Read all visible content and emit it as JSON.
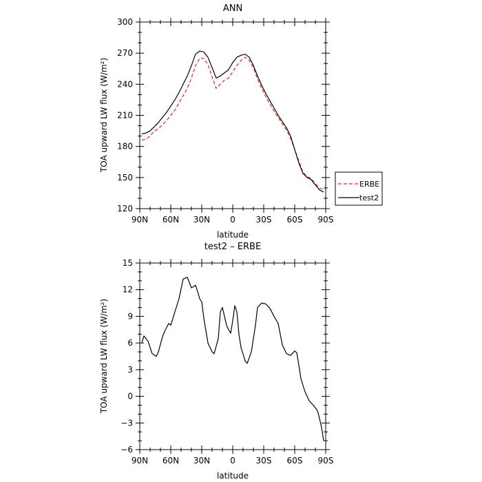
{
  "chart_data": [
    {
      "type": "line",
      "title": "ANN",
      "xlabel": "latitude",
      "ylabel": "TOA upward LW flux (W/m²)",
      "xlim": [
        90,
        -90
      ],
      "ylim": [
        120,
        300
      ],
      "xticks": [
        90,
        60,
        30,
        0,
        -30,
        -60,
        -90
      ],
      "xtick_labels": [
        "90N",
        "60N",
        "30N",
        "0",
        "30S",
        "60S",
        "90S"
      ],
      "yticks": [
        120,
        150,
        180,
        210,
        240,
        270,
        300
      ],
      "ytick_labels": [
        "120",
        "150",
        "180",
        "210",
        "240",
        "270",
        "300"
      ],
      "grid": false,
      "legend_position": "outside-right",
      "series": [
        {
          "name": "ERBE",
          "color": "#e8231d",
          "dash": "dashed",
          "x": [
            88,
            84,
            80,
            76,
            72,
            68,
            64,
            60,
            56,
            52,
            48,
            44,
            40,
            36,
            32,
            28,
            24,
            20,
            16,
            12,
            8,
            4,
            0,
            -4,
            -8,
            -12,
            -16,
            -20,
            -24,
            -28,
            -32,
            -36,
            -40,
            -44,
            -48,
            -52,
            -56,
            -60,
            -64,
            -68,
            -72,
            -76,
            -80,
            -84,
            -88
          ],
          "y": [
            186,
            187,
            190,
            195,
            197,
            201,
            205,
            210,
            215,
            222,
            229,
            236,
            246,
            258,
            265,
            265,
            259,
            247,
            236,
            240,
            244,
            246,
            252,
            258,
            263,
            266,
            263,
            256,
            245,
            236,
            228,
            221,
            214,
            208,
            202,
            196,
            188,
            177,
            166,
            155,
            151,
            149,
            144,
            140,
            138
          ]
        },
        {
          "name": "test2",
          "color": "#000000",
          "dash": "solid",
          "x": [
            88,
            84,
            80,
            76,
            72,
            68,
            64,
            60,
            56,
            52,
            48,
            44,
            40,
            36,
            32,
            28,
            24,
            20,
            16,
            12,
            8,
            4,
            0,
            -4,
            -8,
            -12,
            -16,
            -20,
            -24,
            -28,
            -32,
            -36,
            -40,
            -44,
            -48,
            -52,
            -56,
            -60,
            -64,
            -68,
            -72,
            -76,
            -80,
            -84,
            -88
          ],
          "y": [
            192,
            193,
            195,
            199,
            203,
            208,
            213,
            219,
            225,
            232,
            240,
            248,
            258,
            269,
            272,
            271,
            266,
            256,
            246,
            248,
            251,
            254,
            261,
            266,
            268,
            269,
            266,
            258,
            248,
            239,
            231,
            224,
            217,
            210,
            204,
            198,
            190,
            177,
            164,
            154,
            150,
            148,
            143,
            138,
            136
          ]
        }
      ]
    },
    {
      "type": "line",
      "title": "test2 – ERBE",
      "xlabel": "latitude",
      "ylabel": "TOA upward LW flux (W/m²)",
      "xlim": [
        90,
        -90
      ],
      "ylim": [
        -6,
        15
      ],
      "xticks": [
        90,
        60,
        30,
        0,
        -30,
        -60,
        -90
      ],
      "xtick_labels": [
        "90N",
        "60N",
        "30N",
        "0",
        "30S",
        "60S",
        "90S"
      ],
      "yticks": [
        -6,
        -3,
        0,
        3,
        6,
        9,
        12,
        15
      ],
      "ytick_labels": [
        "−6",
        "−3",
        "0",
        "3",
        "6",
        "9",
        "12",
        "15"
      ],
      "grid": false,
      "series": [
        {
          "color": "#000000",
          "dash": "solid",
          "x": [
            88,
            86,
            82,
            78,
            74,
            72,
            68,
            66,
            62,
            60,
            56,
            52,
            48,
            44,
            40,
            36,
            34,
            32,
            30,
            28,
            24,
            20,
            18,
            14,
            12,
            10,
            8,
            6,
            4,
            2,
            0,
            -2,
            -4,
            -6,
            -8,
            -12,
            -14,
            -18,
            -20,
            -22,
            -24,
            -28,
            -32,
            -36,
            -40,
            -44,
            -48,
            -52,
            -56,
            -60,
            -62,
            -64,
            -66,
            -70,
            -74,
            -78,
            -80,
            -82,
            -84,
            -86,
            -88
          ],
          "y": [
            6.0,
            6.8,
            6.2,
            4.8,
            4.5,
            5.0,
            6.7,
            7.3,
            8.2,
            8.0,
            9.5,
            11.0,
            13.2,
            13.4,
            12.2,
            12.5,
            11.8,
            11.0,
            10.6,
            8.8,
            6.0,
            5.0,
            4.8,
            6.5,
            9.5,
            10.0,
            9.0,
            8.0,
            7.5,
            7.1,
            8.5,
            10.2,
            9.5,
            7.0,
            5.5,
            4.0,
            3.7,
            5.0,
            6.5,
            8.0,
            10.0,
            10.5,
            10.4,
            9.9,
            9.0,
            8.2,
            5.8,
            4.8,
            4.6,
            5.1,
            4.9,
            3.5,
            2.0,
            0.5,
            -0.5,
            -1.0,
            -1.3,
            -1.6,
            -2.5,
            -3.5,
            -5.0
          ]
        }
      ]
    }
  ]
}
